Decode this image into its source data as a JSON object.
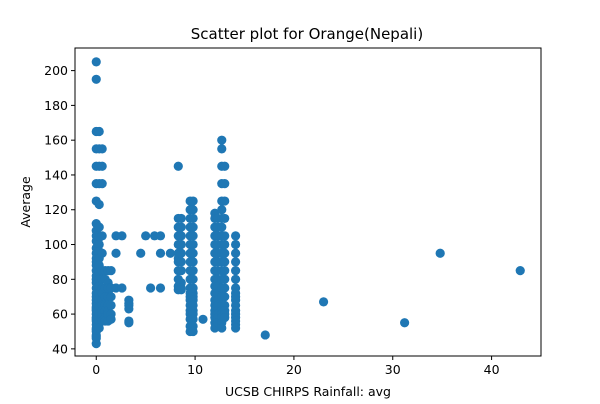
{
  "chart_data": {
    "type": "scatter",
    "title": "Scatter plot for Orange(Nepali)",
    "xlabel": "UCSB CHIRPS Rainfall: avg",
    "ylabel": "Average",
    "xlim": [
      -2.15,
      45.0
    ],
    "ylim": [
      35.9,
      213.0
    ],
    "xticks": [
      0,
      10,
      20,
      30,
      40
    ],
    "yticks": [
      40,
      60,
      80,
      100,
      120,
      140,
      160,
      180,
      200
    ],
    "grid": false,
    "marker_color": "#1f77b4",
    "series": [
      {
        "x": [
          0,
          0,
          0,
          0,
          0,
          0,
          0,
          0,
          0,
          0,
          0,
          0,
          0,
          0,
          0,
          0,
          0,
          0,
          0,
          0,
          0,
          0,
          0,
          0,
          0,
          0,
          0,
          0,
          0,
          0,
          0,
          0,
          0,
          0,
          0,
          0,
          0,
          0,
          0,
          0,
          0.3,
          0.3,
          0.3,
          0.3,
          0.3,
          0.3,
          0.3,
          0.3,
          0.3,
          0.3,
          0.3,
          0.3,
          0.3,
          0.3,
          0.3,
          0.3,
          0.3,
          0.3,
          0.3,
          0.3,
          0.6,
          0.6,
          0.6,
          0.6,
          0.6,
          0.6,
          0.6,
          0.6,
          0.6,
          0.6,
          0.6,
          0.6,
          0.6,
          0.6,
          0.6,
          0.9,
          0.9,
          0.9,
          0.9,
          0.9,
          0.9,
          0.9,
          0.9,
          1.2,
          1.2,
          1.2,
          1.2,
          1.2,
          1.2,
          1.2,
          1.2,
          1.5,
          1.5,
          1.5,
          1.5,
          1.5,
          1.5,
          2.0,
          2.0,
          2.0,
          2.6,
          2.6,
          3.3,
          3.3,
          3.3,
          3.3,
          3.3,
          3.3,
          4.5,
          5.0,
          5.5,
          5.9,
          6.5,
          6.5,
          6.5,
          7.5,
          8.3,
          8.3,
          8.3,
          8.3,
          8.3,
          8.3,
          8.3,
          8.3,
          8.3,
          8.3,
          8.3,
          8.3,
          8.6,
          8.6,
          8.6,
          8.6,
          8.6,
          8.6,
          8.6,
          8.6,
          8.6,
          8.6,
          9.5,
          9.5,
          9.5,
          9.5,
          9.5,
          9.5,
          9.5,
          9.5,
          9.5,
          9.5,
          9.5,
          9.5,
          9.5,
          9.5,
          9.5,
          9.5,
          9.5,
          9.5,
          9.5,
          9.5,
          9.8,
          9.8,
          9.8,
          9.8,
          9.8,
          9.8,
          9.8,
          9.8,
          9.8,
          9.8,
          9.8,
          9.8,
          9.8,
          9.8,
          9.8,
          9.8,
          9.8,
          9.8,
          9.8,
          9.8,
          10.8,
          12.0,
          12.0,
          12.0,
          12.0,
          12.0,
          12.0,
          12.0,
          12.0,
          12.0,
          12.0,
          12.0,
          12.0,
          12.0,
          12.0,
          12.0,
          12.0,
          12.0,
          12.0,
          12.3,
          12.3,
          12.3,
          12.3,
          12.3,
          12.3,
          12.3,
          12.3,
          12.3,
          12.3,
          12.3,
          12.3,
          12.3,
          12.3,
          12.3,
          12.3,
          12.7,
          12.7,
          12.7,
          12.7,
          12.7,
          12.7,
          12.7,
          12.7,
          12.7,
          12.7,
          12.7,
          12.7,
          12.7,
          12.7,
          12.7,
          12.7,
          12.7,
          12.7,
          12.7,
          12.7,
          12.7,
          12.7,
          13.0,
          13.0,
          13.0,
          13.0,
          13.0,
          13.0,
          13.0,
          13.0,
          13.0,
          13.0,
          13.0,
          13.0,
          13.0,
          13.0,
          13.0,
          13.0,
          14.1,
          14.1,
          14.1,
          14.1,
          14.1,
          14.1,
          14.1,
          14.1,
          14.1,
          14.1,
          14.1,
          14.1,
          14.1,
          14.1,
          14.1,
          14.1,
          14.1,
          17.1,
          23.0,
          31.2,
          34.8,
          42.9
        ],
        "y": [
          205,
          195,
          165,
          155,
          145,
          135,
          125,
          112,
          108,
          105,
          102,
          98,
          95,
          92,
          90,
          88,
          85,
          82,
          80,
          78,
          75,
          72,
          70,
          68,
          66,
          64,
          62,
          60,
          58,
          56,
          54,
          52,
          50,
          48,
          46,
          43,
          47,
          51,
          57,
          63,
          165,
          155,
          145,
          135,
          123,
          110,
          104,
          100,
          96,
          92,
          88,
          84,
          80,
          76,
          72,
          68,
          64,
          60,
          56,
          52,
          155,
          145,
          135,
          105,
          95,
          85,
          80,
          75,
          72,
          68,
          65,
          62,
          60,
          58,
          56,
          85,
          80,
          75,
          70,
          65,
          62,
          58,
          56,
          85,
          78,
          75,
          70,
          65,
          62,
          60,
          56,
          85,
          75,
          70,
          65,
          60,
          57,
          105,
          95,
          75,
          105,
          75,
          68,
          66,
          65,
          63,
          56,
          55,
          95,
          105,
          75,
          105,
          95,
          105,
          75,
          95,
          145,
          115,
          110,
          105,
          100,
          95,
          92,
          90,
          85,
          80,
          76,
          74,
          115,
          110,
          105,
          100,
          95,
          90,
          85,
          78,
          75,
          74,
          125,
          120,
          115,
          110,
          105,
          100,
          95,
          90,
          85,
          80,
          75,
          72,
          70,
          68,
          65,
          62,
          60,
          57,
          53,
          50,
          125,
          120,
          115,
          110,
          105,
          100,
          95,
          90,
          85,
          80,
          75,
          72,
          70,
          68,
          65,
          62,
          60,
          57,
          53,
          50,
          57,
          118,
          115,
          110,
          105,
          100,
          95,
          90,
          85,
          80,
          76,
          72,
          68,
          65,
          62,
          60,
          58,
          55,
          52,
          115,
          110,
          105,
          100,
          95,
          90,
          85,
          80,
          76,
          72,
          68,
          65,
          62,
          60,
          58,
          55,
          160,
          155,
          145,
          135,
          125,
          120,
          115,
          110,
          105,
          100,
          95,
          90,
          85,
          80,
          75,
          70,
          65,
          62,
          60,
          58,
          55,
          52,
          145,
          135,
          125,
          115,
          105,
          100,
          95,
          90,
          85,
          80,
          75,
          70,
          65,
          62,
          60,
          58,
          105,
          100,
          95,
          90,
          85,
          80,
          75,
          72,
          70,
          68,
          65,
          62,
          60,
          58,
          56,
          54,
          52,
          48,
          67,
          55,
          95,
          85
        ]
      }
    ]
  }
}
